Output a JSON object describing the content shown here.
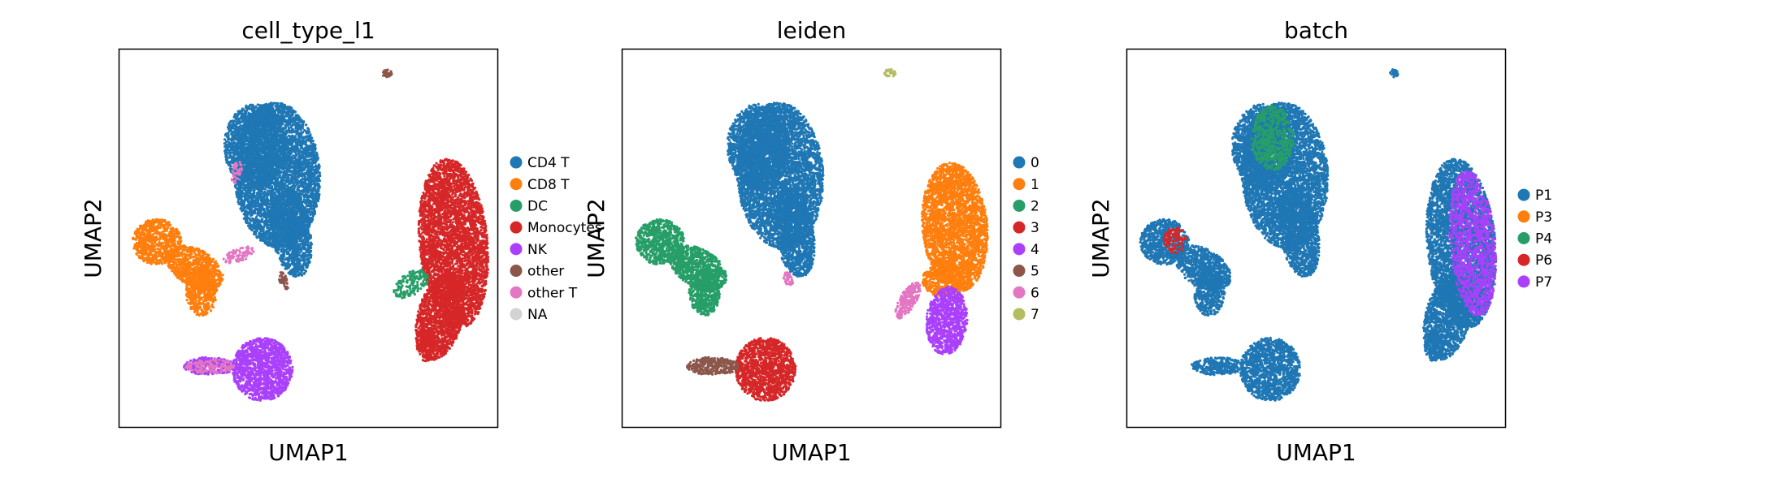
{
  "chart_data": [
    {
      "type": "scatter",
      "title": "cell_type_l1",
      "xlabel": "UMAP1",
      "ylabel": "UMAP2",
      "ticks": "none",
      "legend_placement": "right",
      "legend": [
        {
          "label": "CD4 T",
          "color": "#1f77b4"
        },
        {
          "label": "CD8 T",
          "color": "#ff7f0e"
        },
        {
          "label": "DC",
          "color": "#279e68"
        },
        {
          "label": "Monocytes",
          "color": "#d62728"
        },
        {
          "label": "NK",
          "color": "#aa40fc"
        },
        {
          "label": "other",
          "color": "#8c564b"
        },
        {
          "label": "other T",
          "color": "#e377c2"
        },
        {
          "label": "NA",
          "color": "#d3d3d3"
        }
      ],
      "clusters": [
        {
          "name": "CD4 T",
          "color": "#1f77b4"
        },
        {
          "name": "CD8 T",
          "color": "#ff7f0e"
        },
        {
          "name": "Monocytes",
          "color": "#d62728"
        },
        {
          "name": "NK",
          "color": "#aa40fc"
        },
        {
          "name": "other",
          "color": "#8c564b"
        }
      ],
      "accents": [
        {
          "on": "CD4 T",
          "color": "#e377c2"
        },
        {
          "on": "CD8 T",
          "color": "#e377c2"
        },
        {
          "on": "Monocytes",
          "color": "#279e68"
        },
        {
          "on": "NK",
          "color": "#e377c2"
        }
      ]
    },
    {
      "type": "scatter",
      "title": "leiden",
      "xlabel": "UMAP1",
      "ylabel": "UMAP2",
      "ticks": "none",
      "legend_placement": "right",
      "legend": [
        {
          "label": "0",
          "color": "#1f77b4"
        },
        {
          "label": "1",
          "color": "#ff7f0e"
        },
        {
          "label": "2",
          "color": "#279e68"
        },
        {
          "label": "3",
          "color": "#d62728"
        },
        {
          "label": "4",
          "color": "#aa40fc"
        },
        {
          "label": "5",
          "color": "#8c564b"
        },
        {
          "label": "6",
          "color": "#e377c2"
        },
        {
          "label": "7",
          "color": "#b5bd61"
        }
      ],
      "clusters": [
        {
          "name": "0",
          "color": "#1f77b4"
        },
        {
          "name": "1",
          "color": "#ff7f0e"
        },
        {
          "name": "2",
          "color": "#279e68"
        },
        {
          "name": "3",
          "color": "#d62728"
        },
        {
          "name": "4",
          "color": "#aa40fc"
        },
        {
          "name": "5",
          "color": "#8c564b"
        },
        {
          "name": "6",
          "color": "#e377c2"
        },
        {
          "name": "7",
          "color": "#b5bd61"
        }
      ],
      "accents": []
    },
    {
      "type": "scatter",
      "title": "batch",
      "xlabel": "UMAP1",
      "ylabel": "UMAP2",
      "ticks": "none",
      "legend_placement": "right",
      "legend": [
        {
          "label": "P1",
          "color": "#1f77b4"
        },
        {
          "label": "P3",
          "color": "#ff7f0e"
        },
        {
          "label": "P4",
          "color": "#279e68"
        },
        {
          "label": "P6",
          "color": "#d62728"
        },
        {
          "label": "P7",
          "color": "#aa40fc"
        }
      ],
      "clusters": [
        {
          "name": "P1",
          "color": "#1f77b4"
        }
      ],
      "accents": [
        {
          "on": "P1",
          "color": "#aa40fc"
        },
        {
          "on": "P1",
          "color": "#279e68"
        },
        {
          "on": "P1",
          "color": "#d62728"
        }
      ]
    }
  ]
}
